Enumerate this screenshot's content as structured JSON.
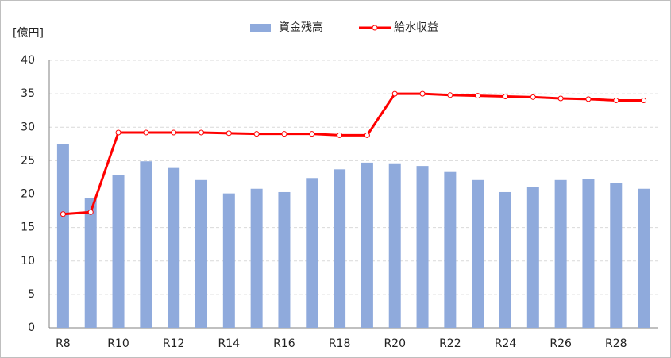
{
  "chart_data": {
    "type": "bar",
    "y_axis_label": "[億円]",
    "categories": [
      "R8",
      null,
      "R10",
      null,
      "R12",
      null,
      "R14",
      null,
      "R16",
      null,
      "R18",
      null,
      "R20",
      null,
      "R22",
      null,
      "R24",
      null,
      "R26",
      null,
      "R28",
      null
    ],
    "series": [
      {
        "name": "資金残高",
        "type": "bar",
        "color": "#8faadc",
        "values": [
          27.5,
          19.4,
          22.8,
          24.9,
          23.9,
          22.1,
          20.1,
          20.8,
          20.3,
          22.4,
          23.7,
          24.7,
          24.6,
          24.2,
          23.3,
          22.1,
          20.3,
          21.1,
          22.1,
          22.2,
          21.7,
          20.8
        ]
      },
      {
        "name": "給水収益",
        "type": "line",
        "color": "#ff0000",
        "values": [
          17.0,
          17.3,
          29.2,
          29.2,
          29.2,
          29.2,
          29.1,
          29.0,
          29.0,
          29.0,
          28.8,
          28.8,
          35.0,
          35.0,
          34.8,
          34.7,
          34.6,
          34.5,
          34.3,
          34.2,
          34.0,
          34.0
        ]
      }
    ],
    "ylim": [
      0,
      40
    ],
    "yticks": [
      0,
      5,
      10,
      15,
      20,
      25,
      30,
      35,
      40
    ],
    "grid": true,
    "legend": "top"
  }
}
